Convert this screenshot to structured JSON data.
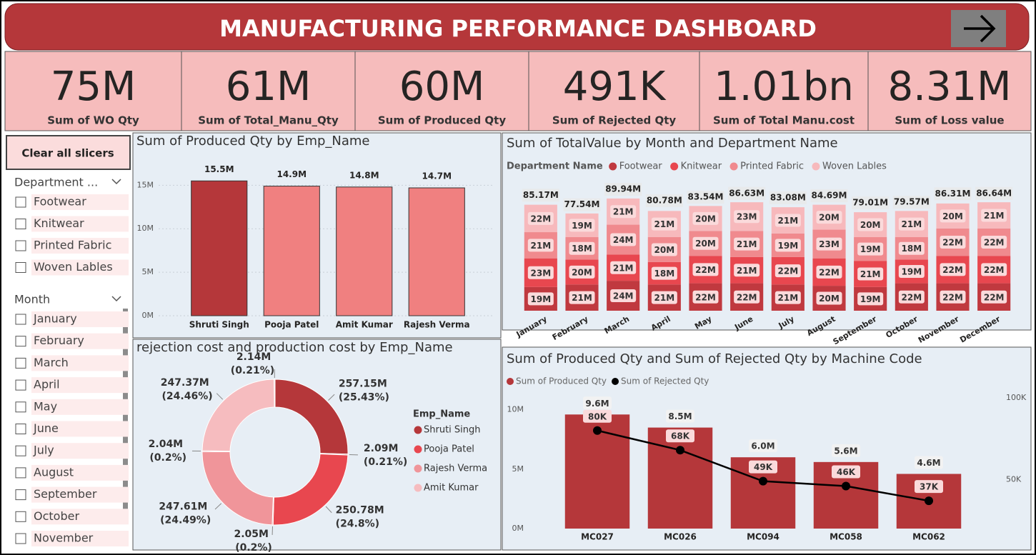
{
  "header": {
    "title": "MANUFACTURING PERFORMANCE DASHBOARD"
  },
  "kpis": [
    {
      "value": "75M",
      "label": "Sum of WO Qty"
    },
    {
      "value": "61M",
      "label": "Sum of Total_Manu_Qty"
    },
    {
      "value": "60M",
      "label": "Sum of Produced Qty"
    },
    {
      "value": "491K",
      "label": "Sum of Rejected Qty"
    },
    {
      "value": "1.01bn",
      "label": "Sum of Total Manu.cost"
    },
    {
      "value": "8.31M",
      "label": "Sum of Loss value"
    }
  ],
  "slicers": {
    "clear_button": "Clear all slicers",
    "department": {
      "title": "Department ...",
      "items": [
        "Footwear",
        "Knitwear",
        "Printed Fabric",
        "Woven Lables"
      ]
    },
    "month": {
      "title": "Month",
      "items": [
        "January",
        "February",
        "March",
        "April",
        "May",
        "June",
        "July",
        "August",
        "September",
        "October",
        "November"
      ]
    }
  },
  "chart_data": [
    {
      "type": "bar",
      "title": "Sum of Produced Qty by Emp_Name",
      "categories": [
        "Shruti Singh",
        "Pooja Patel",
        "Amit Kumar",
        "Rajesh Verma"
      ],
      "values": [
        15500000,
        14900000,
        14800000,
        14700000
      ],
      "value_labels": [
        "15.5M",
        "14.9M",
        "14.8M",
        "14.7M"
      ],
      "colors": [
        "#b5373a",
        "#f08080",
        "#f08080",
        "#f08080"
      ],
      "ylim": [
        0,
        17000000
      ],
      "yticks": [
        {
          "value": 0,
          "label": "0M"
        },
        {
          "value": 5000000,
          "label": "5M"
        },
        {
          "value": 10000000,
          "label": "10M"
        },
        {
          "value": 15000000,
          "label": "15M"
        }
      ],
      "grid": true
    },
    {
      "type": "stacked_bar",
      "title": "Sum of TotalValue by Month and Department Name",
      "legend_title": "Department Name",
      "categories": [
        "January",
        "February",
        "March",
        "April",
        "May",
        "June",
        "July",
        "August",
        "September",
        "October",
        "November",
        "December"
      ],
      "series": [
        {
          "name": "Footwear",
          "color": "#c0393f",
          "values": [
            19000000,
            21000000,
            24000000,
            21000000,
            22000000,
            22000000,
            21000000,
            20000000,
            19000000,
            22000000,
            22000000,
            22000000
          ],
          "value_labels": [
            "19M",
            "21M",
            "24M",
            "21M",
            "22M",
            "22M",
            "21M",
            "20M",
            "19M",
            "22M",
            "22M",
            "22M"
          ]
        },
        {
          "name": "Knitwear",
          "color": "#e8474f",
          "values": [
            23000000,
            20000000,
            21000000,
            18000000,
            22000000,
            21000000,
            22000000,
            22000000,
            21000000,
            19000000,
            22000000,
            22000000
          ],
          "value_labels": [
            "23M",
            "20M",
            "21M",
            "18M",
            "22M",
            "21M",
            "22M",
            "22M",
            "21M",
            "19M",
            "22M",
            "22M"
          ]
        },
        {
          "name": "Printed Fabric",
          "color": "#f08a8e",
          "values": [
            21000000,
            18000000,
            24000000,
            20000000,
            20000000,
            21000000,
            19000000,
            23000000,
            19000000,
            18000000,
            22000000,
            22000000
          ],
          "value_labels": [
            "21M",
            "18M",
            "24M",
            "20M",
            "20M",
            "21M",
            "19M",
            "23M",
            "19M",
            "18M",
            "22M",
            "22M"
          ]
        },
        {
          "name": "Woven Lables",
          "color": "#f7b9bc",
          "values": [
            22000000,
            19000000,
            21000000,
            21000000,
            20000000,
            23000000,
            21000000,
            20000000,
            20000000,
            21000000,
            20000000,
            21000000
          ],
          "value_labels": [
            "22M",
            "19M",
            "21M",
            "21M",
            "20M",
            "23M",
            "21M",
            "20M",
            "20M",
            "21M",
            "20M",
            "21M"
          ]
        }
      ],
      "totals": [
        85170000,
        77540000,
        89940000,
        80780000,
        83540000,
        86630000,
        83080000,
        84690000,
        79010000,
        79570000,
        86310000,
        86640000
      ],
      "total_labels": [
        "85.17M",
        "77.54M",
        "89.94M",
        "80.78M",
        "83.54M",
        "86.63M",
        "83.08M",
        "84.69M",
        "79.01M",
        "79.57M",
        "86.31M",
        "86.64M"
      ]
    },
    {
      "type": "donut",
      "title": "rejection cost and production cost by Emp_Name",
      "legend_title": "Emp_Name",
      "series": [
        {
          "name": "Shruti Singh",
          "color": "#b5373a",
          "values": [
            257150000,
            2090000
          ],
          "value_labels": [
            "257.15M (25.43%)",
            "2.09M (0.21%)"
          ]
        },
        {
          "name": "Pooja Patel",
          "color": "#e8474f",
          "values": [
            250780000,
            2050000
          ],
          "value_labels": [
            "250.78M (24.8%)",
            "2.05M (0.2%)"
          ]
        },
        {
          "name": "Rajesh Verma",
          "color": "#f0959a",
          "values": [
            247610000,
            2040000
          ],
          "value_labels": [
            "247.61M (24.49%)",
            "2.04M (0.2%)"
          ]
        },
        {
          "name": "Amit Kumar",
          "color": "#f6bcbf",
          "values": [
            247370000,
            2140000
          ],
          "value_labels": [
            "247.37M (24.46%)",
            "2.14M (0.21%)"
          ]
        }
      ]
    },
    {
      "type": "bar_line",
      "title": "Sum of Produced Qty and Sum of Rejected Qty by Machine Code",
      "categories": [
        "MC027",
        "MC026",
        "MC094",
        "MC058",
        "MC062"
      ],
      "series": [
        {
          "name": "Sum of Produced Qty",
          "type": "bar",
          "color": "#b5373a",
          "values": [
            9600000,
            8500000,
            6000000,
            5600000,
            4600000
          ],
          "value_labels": [
            "9.6M",
            "8.5M",
            "6.0M",
            "5.6M",
            "4.6M"
          ]
        },
        {
          "name": "Sum of Rejected Qty",
          "type": "line",
          "axis": "y2",
          "color": "#000000",
          "values": [
            80000,
            68000,
            49000,
            46000,
            37000
          ],
          "value_labels": [
            "80K",
            "68K",
            "49K",
            "46K",
            "37K"
          ]
        }
      ],
      "ylim": [
        0,
        11000000
      ],
      "yticks": [
        {
          "value": 0,
          "label": "0M"
        },
        {
          "value": 5000000,
          "label": "5M"
        },
        {
          "value": 10000000,
          "label": "10M"
        }
      ],
      "y2lim": [
        20000,
        100000
      ],
      "y2ticks": [
        {
          "value": 50000,
          "label": "50K"
        },
        {
          "value": 100000,
          "label": "100K"
        }
      ]
    }
  ]
}
